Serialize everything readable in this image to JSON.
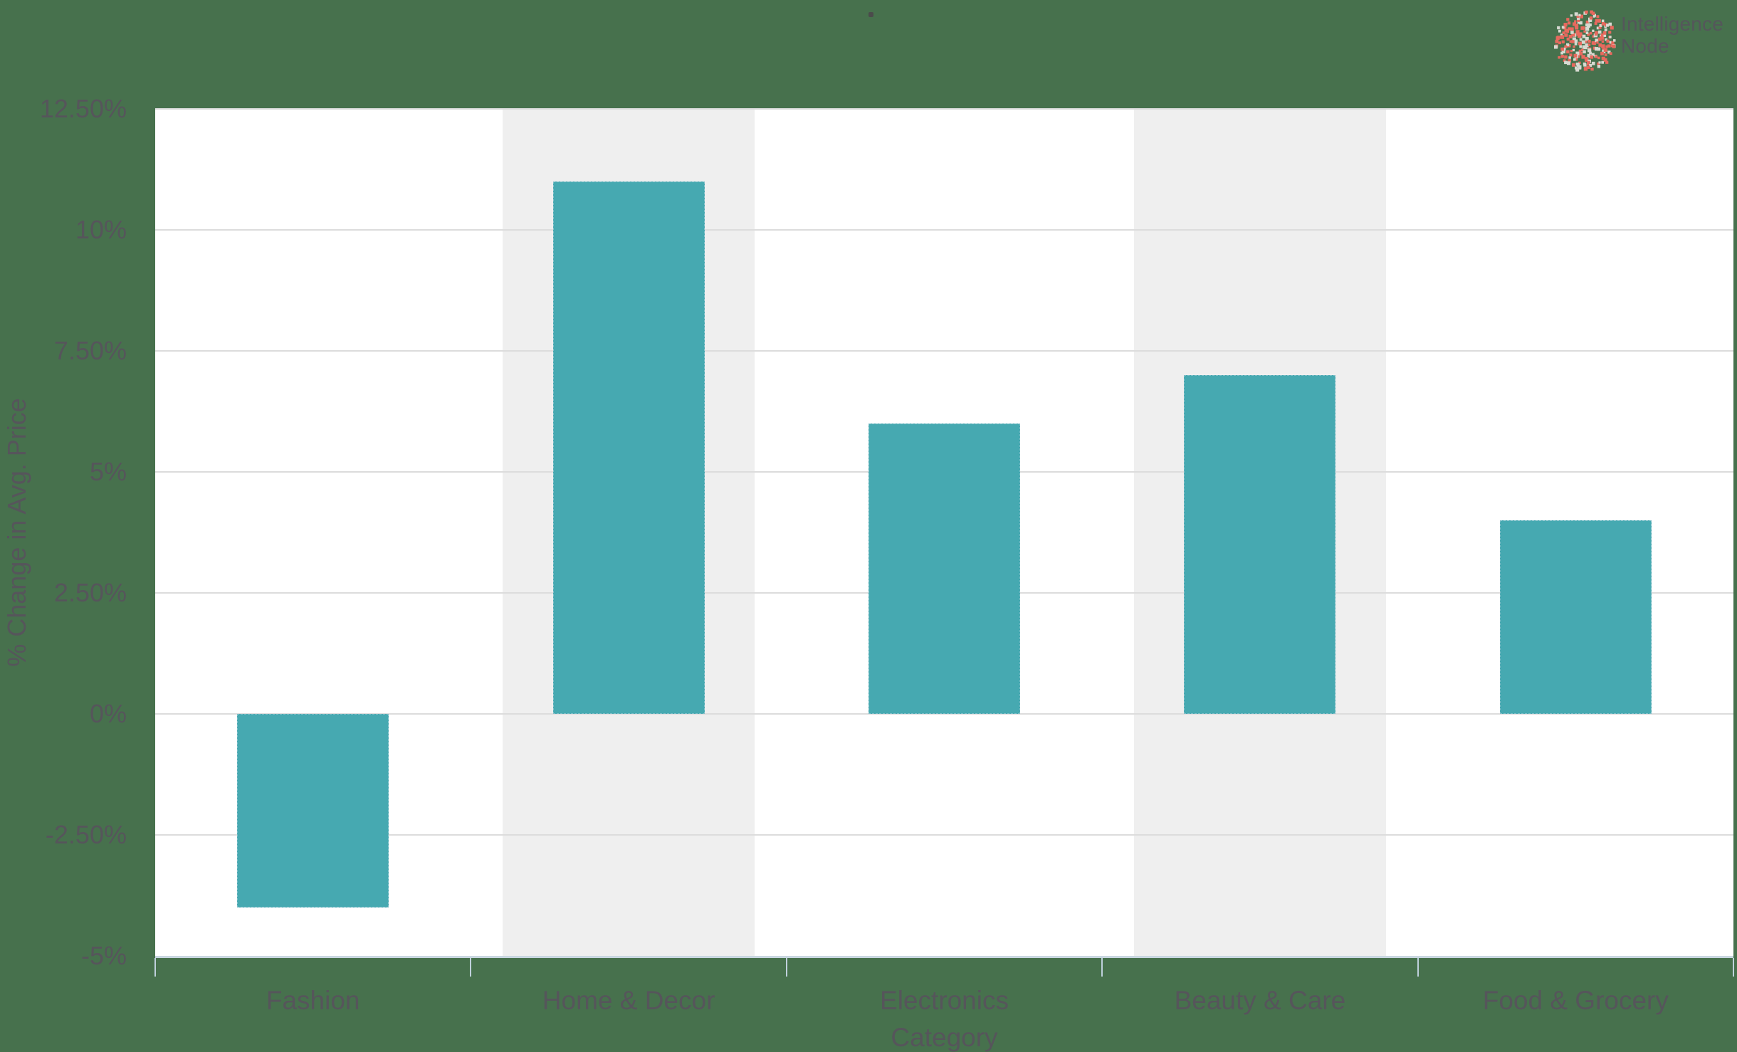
{
  "page": {
    "background_color": "#47714D"
  },
  "logo": {
    "line1": "Intelligence",
    "line2": "Node",
    "globe_dot_color_primary": "#E8695E",
    "globe_dot_color_secondary": "#D7D9D1",
    "text_color": "#55565B"
  },
  "decoration": {
    "top_center_dot_color": "#4B4B4B"
  },
  "colors": {
    "bar": "#46A9B1",
    "shaded_band": "#EFEFEF",
    "gridline": "#DCDCDC",
    "axis_line": "#C9D7E0",
    "tick": "#BFD0DC",
    "label_text": "#56555B"
  },
  "chart_data": {
    "type": "bar",
    "title": "",
    "categories": [
      "Fashion",
      "Home & Decor",
      "Electronics",
      "Beauty & Care",
      "Food & Grocery"
    ],
    "values": [
      -4,
      11,
      6,
      7,
      4
    ],
    "xlabel": "Category",
    "ylabel": "% Change in Avg. Price",
    "ylim": [
      -5,
      12.5
    ],
    "ytick_step": 2.5,
    "ytick_labels": [
      "12.50%",
      "10%",
      "7.50%",
      "5%",
      "2.50%",
      "0%",
      "-2.50%",
      "-5%"
    ],
    "grid": true,
    "legend": false,
    "shaded_category_bands": [
      1,
      3
    ],
    "bar_width_fraction": 0.48,
    "shaded_band_width_fraction": 0.8
  }
}
